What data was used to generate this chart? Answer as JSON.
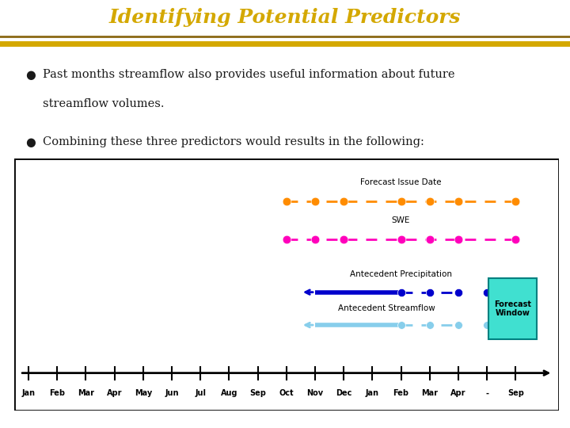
{
  "title": "Identifying Potential Predictors",
  "title_bg": "#1a1a8c",
  "title_color": "#d4a800",
  "title_stripe_gold": "#d4a800",
  "title_stripe_dark": "#8b6914",
  "bullet1_line1": "Past months streamflow also provides useful information about future",
  "bullet1_line2": "streamflow volumes.",
  "bullet2": "Combining these three predictors would results in the following:",
  "bg_color": "#ffffff",
  "text_color": "#1a1a1a",
  "tick_labels": [
    "Jan",
    "Feb",
    "Mar",
    "Apr",
    "May",
    "Jun",
    "Jul",
    "Aug",
    "Sep",
    "Oct",
    "Nov",
    "Dec",
    "Jan",
    "Feb",
    "Mar",
    "Apr",
    "-",
    "Sep"
  ],
  "forecast_issue_label": "Forecast Issue Date",
  "swe_label": "SWE",
  "antecedent_precip_label": "Antecedent Precipitation",
  "antecedent_flow_label": "Antecedent Streamflow",
  "forecast_window_label": "Forecast\nWindow",
  "orange_color": "#ff8c00",
  "pink_color": "#ff00bb",
  "blue_dark": "#0000cc",
  "blue_light": "#87ceeb",
  "teal_box": "#40e0d0",
  "teal_border": "#008080"
}
